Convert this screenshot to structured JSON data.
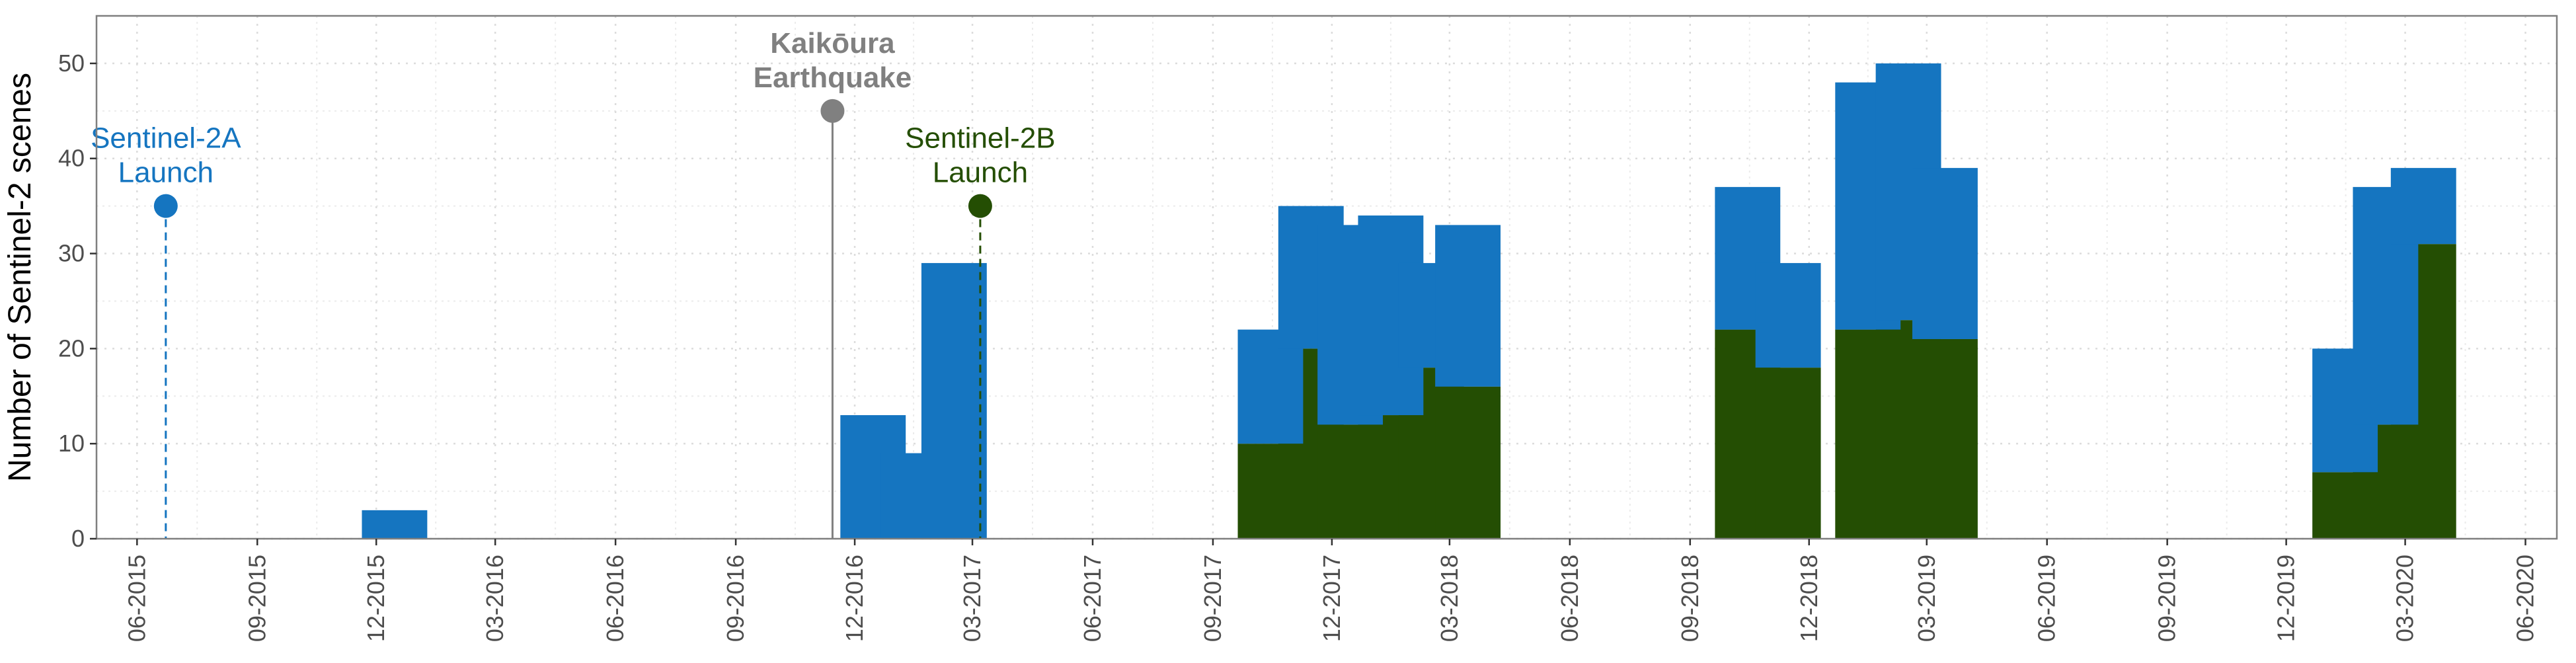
{
  "chart_data": {
    "type": "bar",
    "stacked": true,
    "ylabel": "Number of Sentinel-2 scenes",
    "xlabel": "",
    "title": "",
    "ylim": [
      0,
      55
    ],
    "yticks": [
      0,
      10,
      20,
      30,
      40,
      50
    ],
    "xlim": [
      "2015-05-01",
      "2020-06-25"
    ],
    "xticks": [
      "06-2015",
      "09-2015",
      "12-2015",
      "03-2016",
      "06-2016",
      "09-2016",
      "12-2016",
      "03-2017",
      "06-2017",
      "09-2017",
      "12-2017",
      "03-2018",
      "06-2018",
      "09-2018",
      "12-2018",
      "03-2019",
      "06-2019",
      "09-2019",
      "12-2019",
      "03-2020",
      "06-2020"
    ],
    "grid": true,
    "legend": "none",
    "colors": {
      "blue": "#1575c0",
      "green": "#244e03",
      "gray": "#808080"
    },
    "series": [
      {
        "color": "#244e03",
        "x": [
          "2015-12",
          "2016-12",
          "2017-01",
          "2017-02",
          "2017-10",
          "2017-11",
          "2017-12",
          "2018-01",
          "2018-02",
          "2018-03",
          "2018-10",
          "2018-11",
          "2019-01",
          "2019-02",
          "2019-03",
          "2020-01",
          "2020-02",
          "2020-03"
        ],
        "values": [
          0,
          0,
          0,
          0,
          10,
          20,
          12,
          13,
          18,
          16,
          22,
          18,
          22,
          23,
          21,
          7,
          12,
          31
        ]
      },
      {
        "color": "#1575c0",
        "x": [
          "2015-12",
          "2016-12",
          "2017-01",
          "2017-02",
          "2017-10",
          "2017-11",
          "2017-12",
          "2018-01",
          "2018-02",
          "2018-03",
          "2018-10",
          "2018-11",
          "2019-01",
          "2019-02",
          "2019-03",
          "2020-01",
          "2020-02",
          "2020-03"
        ],
        "values": [
          3,
          13,
          9,
          29,
          12,
          15,
          21,
          21,
          11,
          17,
          15,
          11,
          26,
          27,
          18,
          13,
          25,
          8
        ]
      }
    ],
    "annotations": [
      {
        "label_lines": [
          "Sentinel-2A",
          "Launch"
        ],
        "date": "2015-06-23",
        "y": 35,
        "color": "#1575c0",
        "line": "dashed",
        "bold": false
      },
      {
        "label_lines": [
          "Kaikōura",
          "Earthquake"
        ],
        "date": "2016-11-14",
        "y": 45,
        "color": "#808080",
        "line": "solid",
        "bold": true
      },
      {
        "label_lines": [
          "Sentinel-2B",
          "Launch"
        ],
        "date": "2017-03-07",
        "y": 35,
        "color": "#244e03",
        "line": "dashed",
        "bold": false
      }
    ]
  }
}
